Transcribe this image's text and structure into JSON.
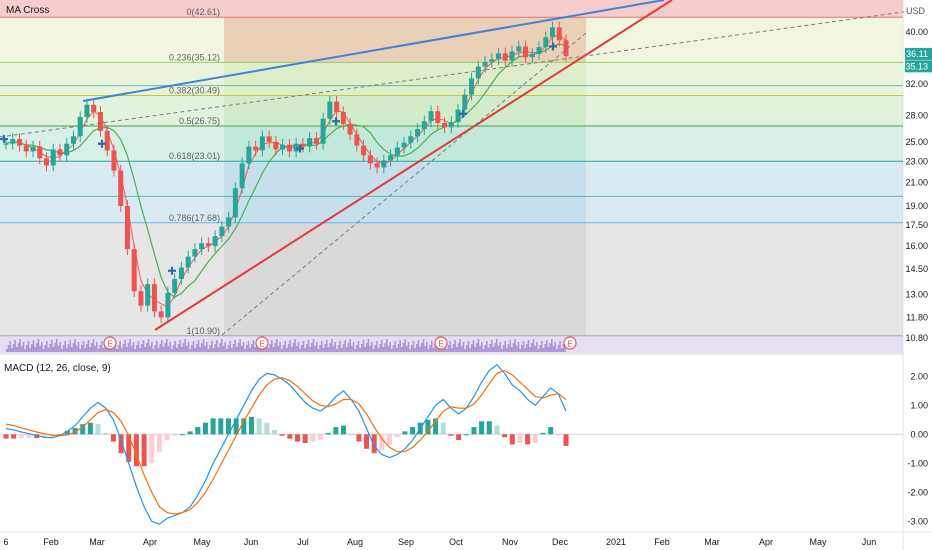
{
  "header": {
    "indicator_label": "MA Cross",
    "currency": "USD"
  },
  "macd_panel": {
    "label": "MACD (12, 26, close, 9)"
  },
  "colors": {
    "up": "#26a69a",
    "down": "#ef5350",
    "ma_fast": "#ff5252",
    "ma_slow": "#4caf50",
    "trend_up": "#e53935",
    "trend_top": "#3f82d9",
    "volume": "#7e57c2",
    "macd": "#2196f3",
    "signal": "#ff6d00"
  },
  "chart_data": [
    {
      "type": "candlestick",
      "title": "",
      "y_scale": "log",
      "price_axis_ticks": [
        40.0,
        36.0,
        32.0,
        28.0,
        25.0,
        23.0,
        21.0,
        19.0,
        17.5,
        16.0,
        14.5,
        13.0,
        11.8,
        10.8
      ],
      "price_labels": [
        {
          "value": 36.11,
          "text": "36.11",
          "color": "#26a69a"
        },
        {
          "value": 35.13,
          "text": "35.13",
          "color": "#26a69a"
        }
      ],
      "time_axis_ticks": [
        "6",
        "Feb",
        "Mar",
        "Apr",
        "May",
        "Jun",
        "Jul",
        "Aug",
        "Sep",
        "Oct",
        "Nov",
        "Dec",
        "2021",
        "Feb",
        "Mar",
        "Apr",
        "May",
        "Jun"
      ],
      "fib_levels": [
        {
          "label": "0(42.61)",
          "value": 42.61
        },
        {
          "label": "0.236(35.12)",
          "value": 35.12
        },
        {
          "label": "0.382(30.49)",
          "value": 30.49
        },
        {
          "label": "0.5(26.75)",
          "value": 26.75
        },
        {
          "label": "0.618(23.01)",
          "value": 23.01
        },
        {
          "label": "0.786(17.68)",
          "value": 17.68
        },
        {
          "label": "1(10.90)",
          "value": 10.9
        }
      ],
      "earnings_markers": [
        "E",
        "E",
        "E",
        "E"
      ],
      "series": [
        {
          "name": "price",
          "values": [
            24.8,
            25.3,
            24.6,
            24.0,
            24.5,
            23.3,
            22.6,
            24.2,
            23.6,
            24.8,
            25.6,
            27.8,
            29.3,
            28.4,
            26.2,
            24.1,
            22.1,
            19.0,
            15.8,
            13.2,
            12.4,
            13.6,
            12.1,
            11.8,
            13.1,
            13.9,
            14.6,
            15.3,
            15.8,
            16.2,
            16.0,
            16.7,
            17.4,
            18.1,
            20.5,
            22.8,
            24.5,
            24.1,
            25.6,
            25.0,
            24.2,
            24.7,
            24.0,
            24.8,
            24.5,
            25.4,
            24.8,
            27.6,
            29.7,
            28.4,
            27.0,
            25.8,
            24.6,
            23.6,
            22.8,
            22.4,
            23.1,
            23.6,
            24.4,
            24.9,
            25.6,
            26.4,
            27.3,
            28.5,
            27.1,
            26.6,
            27.2,
            28.7,
            30.6,
            32.8,
            34.5,
            35.2,
            35.6,
            36.5,
            35.4,
            36.8,
            37.6,
            35.9,
            36.4,
            37.5,
            39.1,
            40.8,
            38.6,
            36.1
          ]
        }
      ]
    },
    {
      "type": "macd",
      "title": "",
      "y_ticks": [
        2.0,
        1.0,
        0.0,
        -1.0,
        -2.0,
        -3.0
      ],
      "ylim": [
        -3.3,
        2.7
      ],
      "series": [
        {
          "name": "",
          "values": [
            0.2,
            0.15,
            0.08,
            0.02,
            -0.05,
            -0.1,
            -0.12,
            -0.05,
            0.1,
            0.3,
            0.6,
            0.9,
            1.1,
            0.9,
            0.5,
            -0.2,
            -1.0,
            -1.8,
            -2.5,
            -3.0,
            -3.1,
            -2.9,
            -2.8,
            -2.7,
            -2.5,
            -2.1,
            -1.6,
            -1.0,
            -0.5,
            0.0,
            0.5,
            1.0,
            1.5,
            1.9,
            2.1,
            2.05,
            1.9,
            1.7,
            1.4,
            1.1,
            0.9,
            0.8,
            1.0,
            1.3,
            1.5,
            1.2,
            0.8,
            0.2,
            -0.4,
            -0.7,
            -0.8,
            -0.7,
            -0.5,
            -0.2,
            0.2,
            0.6,
            1.0,
            1.2,
            0.9,
            0.7,
            0.9,
            1.3,
            1.8,
            2.2,
            2.4,
            2.1,
            1.7,
            1.5,
            1.2,
            1.0,
            1.3,
            1.6,
            1.4,
            0.8
          ]
        },
        {
          "name": "",
          "values": [
            0.35,
            0.3,
            0.22,
            0.15,
            0.08,
            0.02,
            -0.03,
            -0.05,
            -0.02,
            0.08,
            0.25,
            0.5,
            0.75,
            0.85,
            0.75,
            0.45,
            -0.05,
            -0.7,
            -1.4,
            -2.0,
            -2.5,
            -2.7,
            -2.75,
            -2.7,
            -2.6,
            -2.35,
            -2.0,
            -1.55,
            -1.05,
            -0.55,
            -0.05,
            0.45,
            0.9,
            1.35,
            1.7,
            1.9,
            1.95,
            1.85,
            1.65,
            1.4,
            1.15,
            1.0,
            0.95,
            1.05,
            1.2,
            1.2,
            1.05,
            0.7,
            0.25,
            -0.15,
            -0.45,
            -0.6,
            -0.6,
            -0.45,
            -0.2,
            0.1,
            0.45,
            0.8,
            0.95,
            0.9,
            0.9,
            1.05,
            1.35,
            1.75,
            2.1,
            2.2,
            2.05,
            1.8,
            1.55,
            1.3,
            1.25,
            1.35,
            1.4,
            1.2
          ]
        }
      ]
    }
  ]
}
